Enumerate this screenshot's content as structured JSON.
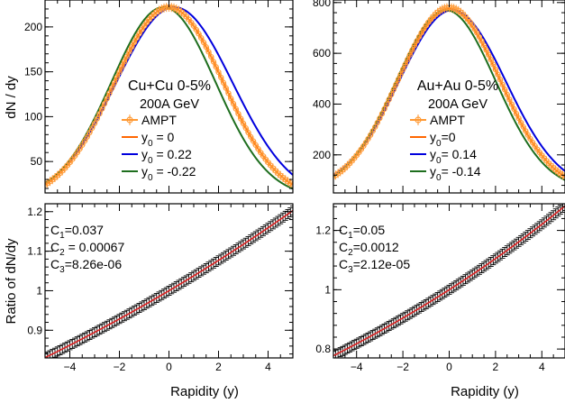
{
  "chart_data": [
    {
      "panel": "top-left",
      "type": "line",
      "ylabel": "dN / dy",
      "xlim": [
        -5,
        5
      ],
      "ylim": [
        15,
        230
      ],
      "yticks": [
        50,
        100,
        150,
        200
      ],
      "legend": {
        "title": "Cu+Cu 0-5%",
        "subtitle": "200A GeV",
        "entries": [
          {
            "label": "AMPT",
            "sub": "",
            "rest": "",
            "color": "#ff9933",
            "marker": true
          },
          {
            "label": "y",
            "sub": "0",
            "rest": " = 0",
            "color": "#ff6600",
            "marker": false
          },
          {
            "label": "y",
            "sub": "0",
            "rest": " = 0.22",
            "color": "#0000dd",
            "marker": false
          },
          {
            "label": "y",
            "sub": "0",
            "rest": " = -0.22",
            "color": "#1e6e1e",
            "marker": false
          }
        ]
      },
      "series": [
        {
          "name": "AMPT",
          "kind": "points",
          "color": "#ff9933",
          "peak": 222,
          "y0": 0,
          "sigma": 2.2,
          "base": 8
        },
        {
          "name": "y0 = 0",
          "kind": "curve",
          "color": "#ff6600",
          "peak": 222,
          "y0": 0,
          "sigma": 2.2,
          "base": 8
        },
        {
          "name": "y0 = 0.22",
          "kind": "curve",
          "color": "#0000dd",
          "peak": 222,
          "y0": 0.22,
          "sigma": 2.35,
          "base": 8
        },
        {
          "name": "y0 = -0.22",
          "kind": "curve",
          "color": "#1e6e1e",
          "peak": 222,
          "y0": -0.22,
          "sigma": 2.1,
          "base": 10
        }
      ]
    },
    {
      "panel": "top-right",
      "type": "line",
      "ylabel": "",
      "xlim": [
        -5,
        5
      ],
      "ylim": [
        50,
        810
      ],
      "yticks": [
        200,
        400,
        600,
        800
      ],
      "legend": {
        "title": "Au+Au 0-5%",
        "subtitle": "200A GeV",
        "entries": [
          {
            "label": "AMPT",
            "sub": "",
            "rest": "",
            "color": "#ff9933",
            "marker": true
          },
          {
            "label": "y",
            "sub": "0",
            "rest": "=0",
            "color": "#ff6600",
            "marker": false
          },
          {
            "label": "y",
            "sub": "0",
            "rest": "= 0.14",
            "color": "#0000dd",
            "marker": false
          },
          {
            "label": "y",
            "sub": "0",
            "rest": "= -0.14",
            "color": "#1e6e1e",
            "marker": false
          }
        ]
      },
      "series": [
        {
          "name": "AMPT",
          "kind": "points",
          "color": "#ff9933",
          "peak": 780,
          "y0": 0,
          "sigma": 2.2,
          "base": 60
        },
        {
          "name": "y0 = 0",
          "kind": "curve",
          "color": "#ff6600",
          "peak": 775,
          "y0": 0,
          "sigma": 2.2,
          "base": 60
        },
        {
          "name": "y0 = 0.14",
          "kind": "curve",
          "color": "#0000dd",
          "peak": 770,
          "y0": 0.14,
          "sigma": 2.3,
          "base": 60
        },
        {
          "name": "y0 = -0.14",
          "kind": "curve",
          "color": "#1e6e1e",
          "peak": 770,
          "y0": -0.14,
          "sigma": 2.15,
          "base": 60
        }
      ]
    },
    {
      "panel": "bottom-left",
      "type": "scatter",
      "xlabel": "Rapidity (y)",
      "ylabel": "Ratio of dN/dy",
      "xlim": [
        -5,
        5
      ],
      "ylim": [
        0.83,
        1.22
      ],
      "xticks": [
        -4,
        -2,
        0,
        2,
        4
      ],
      "yticks": [
        0.9,
        1,
        1.1,
        1.2
      ],
      "coefficients": [
        {
          "label": "C",
          "sub": "1",
          "value": "=0.037"
        },
        {
          "label": "C",
          "sub": "2",
          "value": " = 0.00067"
        },
        {
          "label": "C",
          "sub": "3",
          "value": "=8.26e-06"
        }
      ],
      "fit": {
        "c1": 0.037,
        "c2": 0.00067,
        "c3": 8.26e-06
      }
    },
    {
      "panel": "bottom-right",
      "type": "scatter",
      "xlabel": "Rapidity (y)",
      "ylabel": "",
      "xlim": [
        -5,
        5
      ],
      "ylim": [
        0.77,
        1.29
      ],
      "xticks": [
        -4,
        -2,
        0,
        2,
        4
      ],
      "yticks": [
        0.8,
        1,
        1.2
      ],
      "coefficients": [
        {
          "label": "C",
          "sub": "1",
          "value": "=0.05"
        },
        {
          "label": "C",
          "sub": "2",
          "value": "=0.0012"
        },
        {
          "label": "C",
          "sub": "3",
          "value": "=2.12e-05"
        }
      ],
      "fit": {
        "c1": 0.05,
        "c2": 0.0012,
        "c3": 2.12e-05
      }
    }
  ]
}
